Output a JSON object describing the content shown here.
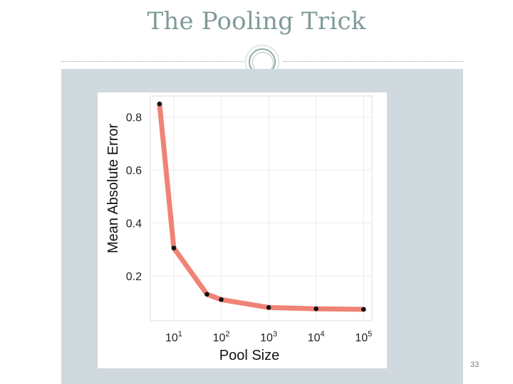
{
  "slide": {
    "title": "The Pooling Trick",
    "page_number": "33"
  },
  "chart_data": {
    "type": "line",
    "xlabel": "Pool Size",
    "ylabel": "Mean Absolute Error",
    "x_scale": "log",
    "xlim": [
      3.2,
      150000
    ],
    "ylim": [
      0.03,
      0.88
    ],
    "x_ticks": [
      {
        "base": "10",
        "exp": "1",
        "value": 10
      },
      {
        "base": "10",
        "exp": "2",
        "value": 100
      },
      {
        "base": "10",
        "exp": "3",
        "value": 1000
      },
      {
        "base": "10",
        "exp": "4",
        "value": 10000
      },
      {
        "base": "10",
        "exp": "5",
        "value": 100000
      }
    ],
    "y_ticks": [
      "0.2",
      "0.4",
      "0.6",
      "0.8"
    ],
    "grid": true,
    "series": [
      {
        "x": [
          5,
          10,
          50,
          100,
          1000,
          10000,
          100000
        ],
        "y": [
          0.85,
          0.305,
          0.13,
          0.11,
          0.08,
          0.075,
          0.073
        ],
        "line_color": "#ef8375",
        "marker_color": "#111111"
      }
    ]
  }
}
